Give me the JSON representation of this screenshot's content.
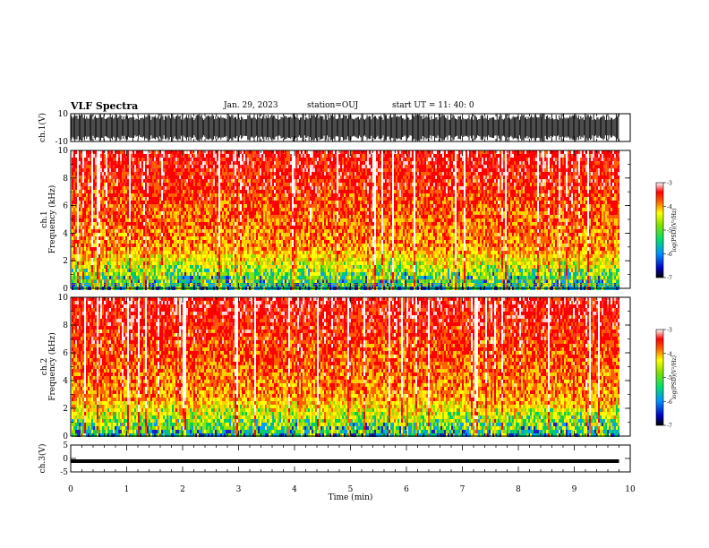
{
  "header": {
    "title": "VLF Spectra",
    "date": "Jan. 29, 2023",
    "station": "station=OUJ",
    "start": "start  UT  =   11: 40: 0"
  },
  "chart_data": [
    {
      "type": "line",
      "name": "ch1-waveform",
      "ylabel": "ch.1(V)",
      "ylim": [
        -10,
        10
      ],
      "y_ticks": [
        "10",
        "-10"
      ],
      "xlim": [
        0,
        10
      ]
    },
    {
      "type": "heatmap",
      "name": "ch1-spectrogram",
      "ylabel": "ch.1 Frequency (kHz)",
      "ylim": [
        0,
        10
      ],
      "y_ticks": [
        "0",
        "2",
        "4",
        "6",
        "8",
        "10"
      ],
      "xlim": [
        0,
        10
      ],
      "data_end_min": 9.8,
      "colorbar": {
        "label": "log(PSD)(V²/Hz)",
        "range": [
          -7,
          -3
        ],
        "ticks": [
          "-3",
          "-4",
          "-5",
          "-6",
          "-7"
        ]
      }
    },
    {
      "type": "heatmap",
      "name": "ch2-spectrogram",
      "ylabel": "ch.2 Frequency (kHz)",
      "ylim": [
        0,
        10
      ],
      "y_ticks": [
        "0",
        "2",
        "4",
        "6",
        "8",
        "10"
      ],
      "xlim": [
        0,
        10
      ],
      "data_end_min": 9.8,
      "colorbar": {
        "label": "log(PSD)(V²/Hz)",
        "range": [
          -7,
          -3
        ],
        "ticks": [
          "-3",
          "-4",
          "-5",
          "-6",
          "-7"
        ]
      }
    },
    {
      "type": "line",
      "name": "ch3-waveform",
      "ylabel": "ch.3(V)",
      "ylim": [
        -5,
        5
      ],
      "y_ticks": [
        "5",
        "0",
        "-5"
      ],
      "xlim": [
        0,
        10
      ],
      "level": -1
    }
  ],
  "x_axis": {
    "label": "Time  (min)",
    "ticks": [
      "0",
      "1",
      "2",
      "3",
      "4",
      "5",
      "6",
      "7",
      "8",
      "9",
      "10"
    ]
  },
  "colors": {
    "frame": "#000000",
    "background": "#ffffff"
  }
}
